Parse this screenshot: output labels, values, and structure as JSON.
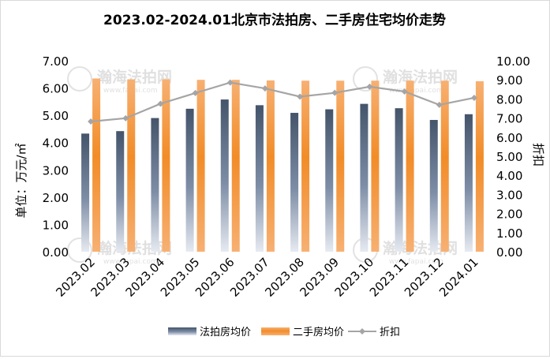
{
  "chart_data": {
    "type": "bar",
    "title": "2023.02-2024.01北京市法拍房、二手房住宅均价走势",
    "categories": [
      "2023.02",
      "2023.03",
      "2023.04",
      "2023.05",
      "2023.06",
      "2023.07",
      "2023.08",
      "2023.09",
      "2023.10",
      "2023.11",
      "2023.12",
      "2024.01"
    ],
    "series": [
      {
        "name": "法拍房均价",
        "axis": "left",
        "kind": "bar",
        "color": "#44546a",
        "values": [
          4.33,
          4.42,
          4.9,
          5.24,
          5.58,
          5.37,
          5.09,
          5.22,
          5.42,
          5.26,
          4.83,
          5.04
        ]
      },
      {
        "name": "二手房均价",
        "axis": "left",
        "kind": "bar",
        "color": "#f28c28",
        "values": [
          6.35,
          6.32,
          6.32,
          6.3,
          6.3,
          6.28,
          6.27,
          6.27,
          6.27,
          6.27,
          6.27,
          6.25
        ]
      },
      {
        "name": "折扣",
        "axis": "right",
        "kind": "line",
        "color": "#a5a5a5",
        "values": [
          6.82,
          6.99,
          7.75,
          8.31,
          8.86,
          8.55,
          8.12,
          8.32,
          8.64,
          8.39,
          7.69,
          8.06
        ]
      }
    ],
    "ylabel": "单位：万元/㎡",
    "y2label": "折扣",
    "ylim": [
      0,
      7
    ],
    "y2lim": [
      0,
      10
    ],
    "yticks": [
      "0.00",
      "1.00",
      "2.00",
      "3.00",
      "4.00",
      "5.00",
      "6.00",
      "7.00"
    ],
    "y2ticks": [
      "0.00",
      "1.00",
      "2.00",
      "3.00",
      "4.00",
      "5.00",
      "6.00",
      "7.00",
      "8.00",
      "9.00",
      "10.00"
    ],
    "legend": "bottom",
    "grid": false
  },
  "watermark": {
    "text": "瀚海法拍网",
    "url": "www.fapai.com"
  }
}
